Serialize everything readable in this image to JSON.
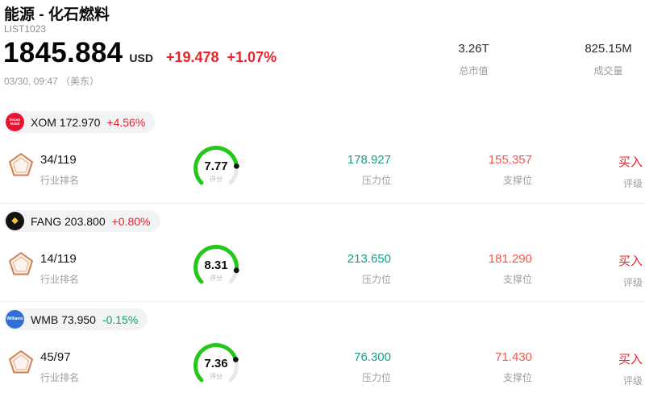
{
  "header": {
    "title": "能源 - 化石燃料",
    "subtitle": "LIST1023",
    "price": "1845.884",
    "currency": "USD",
    "change": "+19.478",
    "change_pct": "+1.07%",
    "timestamp": "03/30, 09:47 （美东）",
    "stats": [
      {
        "value": "3.26T",
        "label": "总市值"
      },
      {
        "value": "825.15M",
        "label": "成交量"
      }
    ]
  },
  "labels": {
    "rank": "行业排名",
    "score": "评分",
    "resistance": "压力位",
    "support": "支撑位",
    "rating": "评级"
  },
  "colors": {
    "up": "#e8222c",
    "down": "#0aa366",
    "resistance": "#139f87",
    "support": "#f2564d",
    "gauge_green": "#26c71d",
    "gauge_track": "#e8e8e8"
  },
  "stocks": [
    {
      "symbol": "XOM",
      "price": "172.970",
      "change_pct": "+4.56%",
      "direction": "up",
      "logo": {
        "text": "Exxon Mobil",
        "bg": "#e8142d",
        "fg": "#ffffff"
      },
      "rank": "34/119",
      "score": "7.77",
      "resistance": "178.927",
      "support": "155.357",
      "rating": "买入"
    },
    {
      "symbol": "FANG",
      "price": "203.800",
      "change_pct": "+0.80%",
      "direction": "up",
      "logo": {
        "text": "◆",
        "bg": "#131313",
        "fg": "#f0c43c"
      },
      "rank": "14/119",
      "score": "8.31",
      "resistance": "213.650",
      "support": "181.290",
      "rating": "买入"
    },
    {
      "symbol": "WMB",
      "price": "73.950",
      "change_pct": "-0.15%",
      "direction": "down",
      "logo": {
        "text": "Williams",
        "bg": "#2f6fd6",
        "fg": "#ffffff"
      },
      "rank": "45/97",
      "score": "7.36",
      "resistance": "76.300",
      "support": "71.430",
      "rating": "买入"
    }
  ]
}
